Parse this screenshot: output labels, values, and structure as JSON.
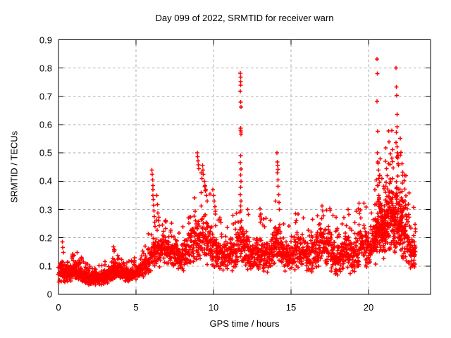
{
  "chart_data": {
    "type": "scatter",
    "title": "Day 099 of 2022, SRMTID for receiver warn",
    "xlabel": "GPS time / hours",
    "ylabel": "SRMTID / TECUs",
    "xlim": [
      0,
      24
    ],
    "ylim": [
      0,
      0.9
    ],
    "xticks": [
      [
        0,
        "0"
      ],
      [
        5,
        "5"
      ],
      [
        10,
        "10"
      ],
      [
        15,
        "15"
      ],
      [
        20,
        "20"
      ]
    ],
    "yticks": [
      [
        0,
        "0"
      ],
      [
        0.1,
        "0.1"
      ],
      [
        0.2,
        "0.2"
      ],
      [
        0.3,
        "0.3"
      ],
      [
        0.4,
        "0.4"
      ],
      [
        0.5,
        "0.5"
      ],
      [
        0.6,
        "0.6"
      ],
      [
        0.7,
        "0.7"
      ],
      [
        0.8,
        "0.8"
      ],
      [
        0.9,
        "0.9"
      ]
    ],
    "grid": true,
    "legend_position": "none",
    "marker": {
      "symbol": "plus",
      "color": "#ff0000",
      "size": 6,
      "stroke_width": 1.5
    },
    "colors": {
      "marker": "#ff0000",
      "grid": "#ababab",
      "border": "#000000",
      "background": "#ffffff"
    },
    "description": "Dense scatter of SRMTID values vs GPS time; band_profile gives [hour, band_min, band_max] of the dense point band, outliers are individually visible high points, boost_windows mark extra-dense intervals.",
    "x_start": 0.03,
    "x_end": 23.05,
    "points_per_hour": 110,
    "tail_fraction": 0.055,
    "seed": 7,
    "boost_windows": [
      [
        20.4,
        22.4,
        1.0
      ],
      [
        0.0,
        5.0,
        0.35
      ]
    ],
    "band_profile": [
      [
        0.0,
        0.04,
        0.13
      ],
      [
        0.3,
        0.04,
        0.12
      ],
      [
        0.8,
        0.045,
        0.11
      ],
      [
        1.2,
        0.05,
        0.12
      ],
      [
        1.7,
        0.035,
        0.09
      ],
      [
        2.2,
        0.03,
        0.085
      ],
      [
        2.8,
        0.035,
        0.09
      ],
      [
        3.3,
        0.04,
        0.1
      ],
      [
        3.6,
        0.045,
        0.13
      ],
      [
        4.0,
        0.05,
        0.11
      ],
      [
        4.4,
        0.04,
        0.095
      ],
      [
        4.8,
        0.045,
        0.1
      ],
      [
        5.2,
        0.055,
        0.12
      ],
      [
        5.7,
        0.06,
        0.15
      ],
      [
        6.1,
        0.08,
        0.22
      ],
      [
        6.5,
        0.09,
        0.22
      ],
      [
        7.0,
        0.1,
        0.22
      ],
      [
        7.5,
        0.09,
        0.21
      ],
      [
        8.0,
        0.08,
        0.19
      ],
      [
        8.5,
        0.09,
        0.24
      ],
      [
        9.0,
        0.1,
        0.3
      ],
      [
        9.4,
        0.1,
        0.32
      ],
      [
        9.8,
        0.09,
        0.27
      ],
      [
        10.2,
        0.08,
        0.22
      ],
      [
        10.7,
        0.075,
        0.2
      ],
      [
        11.2,
        0.08,
        0.22
      ],
      [
        11.7,
        0.09,
        0.28
      ],
      [
        12.0,
        0.09,
        0.24
      ],
      [
        12.5,
        0.07,
        0.2
      ],
      [
        13.0,
        0.08,
        0.23
      ],
      [
        13.5,
        0.07,
        0.2
      ],
      [
        14.0,
        0.09,
        0.26
      ],
      [
        14.5,
        0.08,
        0.22
      ],
      [
        15.0,
        0.08,
        0.2
      ],
      [
        15.5,
        0.09,
        0.24
      ],
      [
        16.0,
        0.07,
        0.2
      ],
      [
        16.5,
        0.08,
        0.22
      ],
      [
        17.0,
        0.09,
        0.28
      ],
      [
        17.5,
        0.08,
        0.24
      ],
      [
        18.0,
        0.06,
        0.19
      ],
      [
        18.5,
        0.07,
        0.24
      ],
      [
        19.0,
        0.07,
        0.21
      ],
      [
        19.5,
        0.09,
        0.27
      ],
      [
        20.0,
        0.08,
        0.24
      ],
      [
        20.4,
        0.1,
        0.3
      ],
      [
        20.7,
        0.12,
        0.38
      ],
      [
        21.0,
        0.12,
        0.4
      ],
      [
        21.4,
        0.14,
        0.45
      ],
      [
        21.8,
        0.13,
        0.42
      ],
      [
        22.1,
        0.11,
        0.38
      ],
      [
        22.4,
        0.1,
        0.32
      ],
      [
        22.7,
        0.08,
        0.26
      ],
      [
        23.05,
        0.06,
        0.22
      ]
    ],
    "outliers": [
      [
        0.25,
        0.185
      ],
      [
        0.28,
        0.165
      ],
      [
        0.32,
        0.148
      ],
      [
        1.0,
        0.138
      ],
      [
        3.55,
        0.168
      ],
      [
        3.58,
        0.152
      ],
      [
        4.9,
        0.13
      ],
      [
        6.03,
        0.44
      ],
      [
        6.05,
        0.425
      ],
      [
        6.06,
        0.405
      ],
      [
        6.08,
        0.385
      ],
      [
        6.1,
        0.37
      ],
      [
        6.1,
        0.35
      ],
      [
        6.12,
        0.335
      ],
      [
        6.14,
        0.315
      ],
      [
        6.16,
        0.295
      ],
      [
        6.18,
        0.275
      ],
      [
        6.2,
        0.255
      ],
      [
        6.22,
        0.24
      ],
      [
        6.35,
        0.35
      ],
      [
        6.38,
        0.318
      ],
      [
        6.4,
        0.288
      ],
      [
        6.45,
        0.26
      ],
      [
        8.38,
        0.27
      ],
      [
        8.42,
        0.252
      ],
      [
        8.95,
        0.5
      ],
      [
        8.97,
        0.487
      ],
      [
        9.0,
        0.472
      ],
      [
        9.02,
        0.458
      ],
      [
        9.05,
        0.445
      ],
      [
        9.2,
        0.43
      ],
      [
        9.25,
        0.41
      ],
      [
        9.3,
        0.455
      ],
      [
        9.32,
        0.44
      ],
      [
        9.35,
        0.425
      ],
      [
        9.4,
        0.4
      ],
      [
        9.45,
        0.385
      ],
      [
        9.5,
        0.37
      ],
      [
        9.55,
        0.35
      ],
      [
        9.6,
        0.33
      ],
      [
        9.95,
        0.37
      ],
      [
        10.0,
        0.35
      ],
      [
        10.05,
        0.33
      ],
      [
        10.1,
        0.31
      ],
      [
        11.72,
        0.782
      ],
      [
        11.74,
        0.768
      ],
      [
        11.74,
        0.752
      ],
      [
        11.76,
        0.74
      ],
      [
        11.73,
        0.718
      ],
      [
        11.75,
        0.68
      ],
      [
        11.77,
        0.662
      ],
      [
        11.74,
        0.588
      ],
      [
        11.76,
        0.58
      ],
      [
        11.77,
        0.574
      ],
      [
        11.78,
        0.566
      ],
      [
        11.75,
        0.49
      ],
      [
        11.72,
        0.465
      ],
      [
        11.78,
        0.443
      ],
      [
        11.74,
        0.422
      ],
      [
        11.77,
        0.4
      ],
      [
        11.75,
        0.378
      ],
      [
        11.72,
        0.352
      ],
      [
        11.78,
        0.33
      ],
      [
        11.74,
        0.312
      ],
      [
        11.76,
        0.295
      ],
      [
        12.2,
        0.3
      ],
      [
        12.25,
        0.282
      ],
      [
        13.0,
        0.302
      ],
      [
        13.05,
        0.284
      ],
      [
        13.1,
        0.266
      ],
      [
        14.1,
        0.5
      ],
      [
        14.12,
        0.468
      ],
      [
        14.13,
        0.455
      ],
      [
        14.15,
        0.442
      ],
      [
        14.12,
        0.43
      ],
      [
        14.16,
        0.405
      ],
      [
        14.15,
        0.382
      ],
      [
        14.2,
        0.352
      ],
      [
        14.22,
        0.325
      ],
      [
        14.25,
        0.3
      ],
      [
        15.3,
        0.285
      ],
      [
        15.35,
        0.262
      ],
      [
        17.0,
        0.312
      ],
      [
        17.05,
        0.295
      ],
      [
        17.1,
        0.278
      ],
      [
        17.9,
        0.272
      ],
      [
        18.68,
        0.3
      ],
      [
        18.72,
        0.282
      ],
      [
        19.35,
        0.302
      ],
      [
        19.42,
        0.286
      ],
      [
        19.5,
        0.27
      ],
      [
        20.55,
        0.832
      ],
      [
        20.57,
        0.78
      ],
      [
        20.55,
        0.682
      ],
      [
        20.58,
        0.576
      ],
      [
        20.56,
        0.5
      ],
      [
        20.6,
        0.468
      ],
      [
        20.63,
        0.44
      ],
      [
        20.66,
        0.41
      ],
      [
        21.1,
        0.47
      ],
      [
        21.15,
        0.445
      ],
      [
        21.2,
        0.42
      ],
      [
        21.3,
        0.462
      ],
      [
        21.5,
        0.482
      ],
      [
        21.55,
        0.512
      ],
      [
        21.6,
        0.447
      ],
      [
        21.78,
        0.8
      ],
      [
        21.8,
        0.733
      ],
      [
        21.82,
        0.703
      ],
      [
        21.85,
        0.636
      ],
      [
        21.83,
        0.592
      ],
      [
        21.8,
        0.572
      ],
      [
        21.84,
        0.522
      ],
      [
        21.86,
        0.5
      ],
      [
        21.88,
        0.482
      ],
      [
        21.9,
        0.462
      ],
      [
        22.05,
        0.552
      ],
      [
        22.1,
        0.502
      ],
      [
        22.15,
        0.462
      ],
      [
        22.2,
        0.432
      ],
      [
        22.3,
        0.402
      ],
      [
        22.35,
        0.372
      ],
      [
        22.42,
        0.348
      ],
      [
        22.5,
        0.302
      ],
      [
        22.6,
        0.282
      ],
      [
        23.0,
        0.248
      ],
      [
        23.02,
        0.222
      ]
    ]
  }
}
